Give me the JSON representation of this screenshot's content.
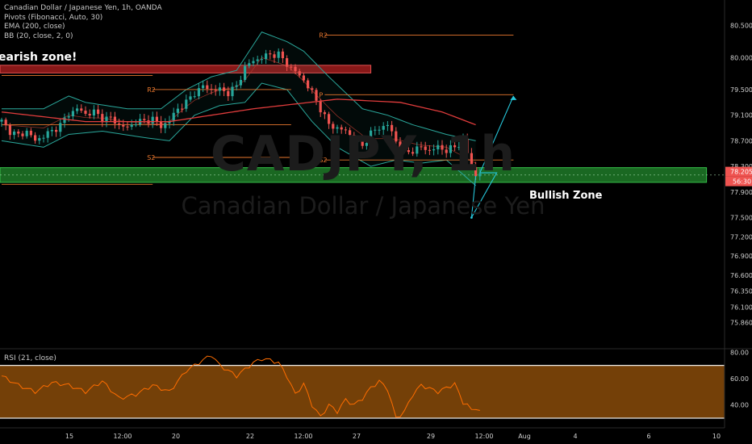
{
  "legend": {
    "symbol_line": "Canadian Dollar / Japanese Yen, 1h, OANDA",
    "pivots": "Pivots (Fibonacci, Auto, 30)",
    "ema": "EMA (200, close)",
    "bb": "BB (20, close, 2, 0)"
  },
  "watermark": {
    "symbol": "CADJPY, 1h",
    "name": "Canadian Dollar / Japanese Yen"
  },
  "annotations": {
    "bearish": "earish zone!",
    "bullish": "Bullish Zone"
  },
  "rsi_legend": "RSI (21, close)",
  "colors": {
    "bull": "#26a69a",
    "bear": "#ef5350",
    "bb": "#2aa79b",
    "ema": "#e03c3c",
    "pivot": "#e8772e",
    "rsi": "#ff6d00",
    "rsi_band": "#7a4308",
    "bear_zone": "#a01c1c",
    "bull_zone": "#1f7a28",
    "path": "#26c6da"
  },
  "chart_data": {
    "type": "candlestick",
    "symbol": "CADJPY",
    "timeframe": "1h",
    "price_axis": {
      "range": [
        75.45,
        80.9
      ],
      "ticks": [
        "80.500",
        "80.000",
        "79.500",
        "79.100",
        "78.700",
        "78.300",
        "77.900",
        "77.500",
        "77.200",
        "76.900",
        "76.600",
        "76.350",
        "76.100",
        "75.860"
      ]
    },
    "time_axis": [
      "15",
      "12:00",
      "20",
      "12:00",
      "22",
      "12:00",
      "27",
      "12:00",
      "29",
      "12:00",
      "Aug",
      "4",
      "6",
      "10"
    ],
    "last_price": "78.205",
    "countdown": "56:30",
    "close_path": [
      [
        0,
        79.0
      ],
      [
        2,
        78.85
      ],
      [
        4,
        78.78
      ],
      [
        6,
        78.85
      ],
      [
        8,
        78.7
      ],
      [
        10,
        78.78
      ],
      [
        12,
        78.85
      ],
      [
        14,
        78.95
      ],
      [
        16,
        79.12
      ],
      [
        18,
        79.2
      ],
      [
        20,
        79.12
      ],
      [
        22,
        79.15
      ],
      [
        24,
        79.05
      ],
      [
        26,
        79.05
      ],
      [
        28,
        78.95
      ],
      [
        30,
        78.9
      ],
      [
        32,
        79.0
      ],
      [
        34,
        79.0
      ],
      [
        36,
        79.05
      ],
      [
        38,
        78.92
      ],
      [
        40,
        79.02
      ],
      [
        42,
        79.2
      ],
      [
        44,
        79.3
      ],
      [
        46,
        79.45
      ],
      [
        48,
        79.55
      ],
      [
        50,
        79.5
      ],
      [
        52,
        79.5
      ],
      [
        54,
        79.45
      ],
      [
        56,
        79.55
      ],
      [
        58,
        79.85
      ],
      [
        60,
        79.95
      ],
      [
        62,
        80.0
      ],
      [
        64,
        80.05
      ],
      [
        66,
        80.05
      ],
      [
        68,
        79.9
      ],
      [
        70,
        79.78
      ],
      [
        72,
        79.65
      ],
      [
        74,
        79.45
      ],
      [
        76,
        79.2
      ],
      [
        78,
        78.95
      ],
      [
        80,
        78.9
      ],
      [
        82,
        78.85
      ],
      [
        84,
        78.75
      ],
      [
        86,
        78.62
      ],
      [
        88,
        78.82
      ],
      [
        90,
        78.9
      ],
      [
        92,
        78.95
      ],
      [
        94,
        78.7
      ],
      [
        96,
        78.5
      ],
      [
        98,
        78.55
      ],
      [
        100,
        78.6
      ],
      [
        102,
        78.55
      ],
      [
        104,
        78.6
      ],
      [
        106,
        78.55
      ],
      [
        108,
        78.6
      ],
      [
        110,
        78.7
      ],
      [
        111,
        78.5
      ],
      [
        112,
        78.3
      ],
      [
        113,
        78.15
      ],
      [
        114,
        78.2
      ]
    ],
    "ema_200": [
      [
        0,
        79.15
      ],
      [
        20,
        79.0
      ],
      [
        40,
        79.0
      ],
      [
        60,
        79.2
      ],
      [
        80,
        79.35
      ],
      [
        95,
        79.3
      ],
      [
        105,
        79.15
      ],
      [
        113,
        78.95
      ]
    ],
    "bollinger": {
      "upper": [
        [
          0,
          79.2
        ],
        [
          10,
          79.2
        ],
        [
          16,
          79.4
        ],
        [
          20,
          79.3
        ],
        [
          30,
          79.2
        ],
        [
          38,
          79.2
        ],
        [
          44,
          79.5
        ],
        [
          50,
          79.7
        ],
        [
          56,
          79.8
        ],
        [
          62,
          80.4
        ],
        [
          68,
          80.25
        ],
        [
          72,
          80.1
        ],
        [
          78,
          79.7
        ],
        [
          86,
          79.2
        ],
        [
          92,
          79.1
        ],
        [
          98,
          78.95
        ],
        [
          106,
          78.8
        ],
        [
          113,
          78.7
        ]
      ],
      "lower": [
        [
          0,
          78.7
        ],
        [
          10,
          78.6
        ],
        [
          16,
          78.8
        ],
        [
          24,
          78.85
        ],
        [
          34,
          78.75
        ],
        [
          40,
          78.7
        ],
        [
          46,
          79.1
        ],
        [
          52,
          79.25
        ],
        [
          58,
          79.3
        ],
        [
          62,
          79.6
        ],
        [
          68,
          79.5
        ],
        [
          74,
          79.0
        ],
        [
          80,
          78.6
        ],
        [
          88,
          78.3
        ],
        [
          94,
          78.4
        ],
        [
          100,
          78.35
        ],
        [
          106,
          78.4
        ],
        [
          113,
          78.0
        ]
      ]
    },
    "pivots": [
      {
        "label": "R2",
        "x0": 36,
        "x1": 69,
        "value": 79.5
      },
      {
        "label": "S2",
        "x0": 36,
        "x1": 69,
        "value": 78.44
      },
      {
        "label": "",
        "x0": 0,
        "x1": 69,
        "value": 78.95
      },
      {
        "label": "",
        "x0": 0,
        "x1": 36,
        "value": 79.72
      },
      {
        "label": "",
        "x0": 0,
        "x1": 36,
        "value": 78.02
      },
      {
        "label": "R2",
        "x0": 77,
        "x1": 122,
        "value": 80.35
      },
      {
        "label": "P",
        "x0": 77,
        "x1": 122,
        "value": 79.42
      },
      {
        "label": "S2",
        "x0": 77,
        "x1": 122,
        "value": 78.4
      }
    ],
    "zones": [
      {
        "name": "bearish",
        "x0": 0,
        "x1": 88,
        "y_low": 79.76,
        "y_high": 79.88
      },
      {
        "name": "bullish",
        "x0": 0,
        "x1": 168,
        "y_low": 78.05,
        "y_high": 78.28
      }
    ],
    "projection": [
      [
        113,
        78.15
      ],
      [
        112,
        77.5
      ],
      [
        118,
        78.2
      ],
      [
        114,
        78.2
      ],
      [
        122,
        79.4
      ]
    ],
    "rsi": {
      "period": 21,
      "axis": [
        30,
        82
      ],
      "ticks": [
        "80.00",
        "60.00",
        "40.00"
      ],
      "levels": [
        70,
        30
      ],
      "values": [
        [
          0,
          62
        ],
        [
          4,
          55
        ],
        [
          8,
          50
        ],
        [
          12,
          57
        ],
        [
          16,
          55
        ],
        [
          20,
          50
        ],
        [
          24,
          58
        ],
        [
          28,
          45
        ],
        [
          32,
          48
        ],
        [
          36,
          55
        ],
        [
          40,
          50
        ],
        [
          44,
          66
        ],
        [
          48,
          74
        ],
        [
          50,
          78
        ],
        [
          52,
          70
        ],
        [
          56,
          62
        ],
        [
          60,
          72
        ],
        [
          62,
          75
        ],
        [
          64,
          74
        ],
        [
          66,
          72
        ],
        [
          68,
          62
        ],
        [
          70,
          48
        ],
        [
          72,
          56
        ],
        [
          74,
          40
        ],
        [
          76,
          31
        ],
        [
          78,
          40
        ],
        [
          80,
          35
        ],
        [
          82,
          44
        ],
        [
          84,
          40
        ],
        [
          86,
          45
        ],
        [
          88,
          53
        ],
        [
          90,
          58
        ],
        [
          92,
          52
        ],
        [
          94,
          30
        ],
        [
          96,
          35
        ],
        [
          98,
          48
        ],
        [
          100,
          55
        ],
        [
          104,
          50
        ],
        [
          108,
          56
        ],
        [
          110,
          42
        ],
        [
          111,
          40
        ],
        [
          112,
          36
        ],
        [
          113,
          38
        ],
        [
          114,
          35
        ]
      ]
    }
  }
}
